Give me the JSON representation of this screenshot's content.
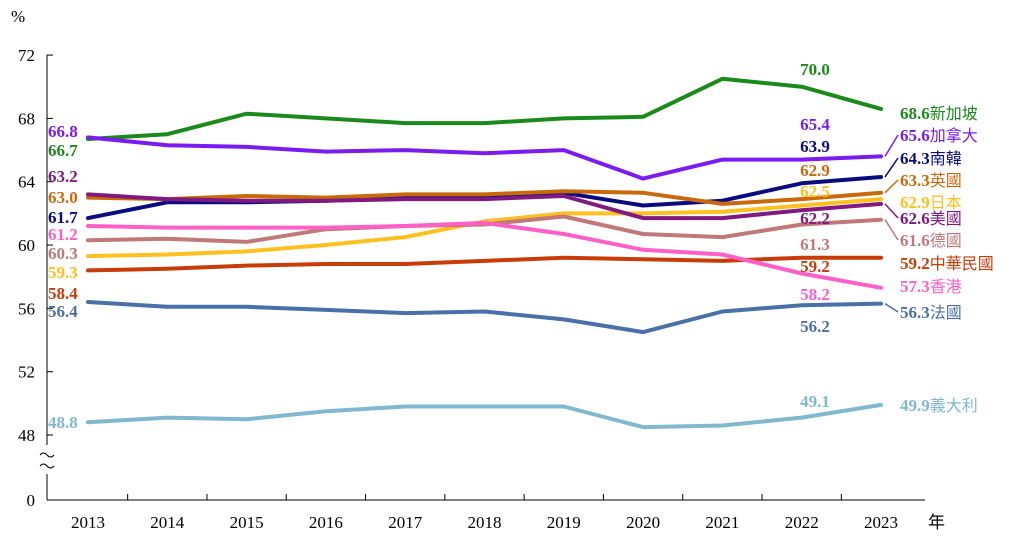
{
  "chart_data": {
    "type": "line",
    "y_unit": "%",
    "x_unit": "年",
    "ylim": [
      48,
      72
    ],
    "y_ticks": [
      "0",
      "48",
      "52",
      "56",
      "60",
      "64",
      "68",
      "72"
    ],
    "y_break": true,
    "grid": false,
    "x": [
      "2013",
      "2014",
      "2015",
      "2016",
      "2017",
      "2018",
      "2019",
      "2020",
      "2021",
      "2022",
      "2023"
    ],
    "series": [
      {
        "name": "新加坡",
        "color": "#1a8a1a",
        "values": [
          66.7,
          67.0,
          68.3,
          68.0,
          67.7,
          67.7,
          68.0,
          68.1,
          70.5,
          70.0,
          68.6
        ],
        "labels": [
          {
            "i": 0,
            "text": "66.7"
          },
          {
            "i": 9,
            "text": "70.0"
          },
          {
            "i": 10,
            "text": "68.6"
          }
        ]
      },
      {
        "name": "加拿大",
        "color": "#7a1cf0",
        "values": [
          66.8,
          66.3,
          66.2,
          65.9,
          66.0,
          65.8,
          66.0,
          64.2,
          65.4,
          65.4,
          65.6
        ],
        "labels": [
          {
            "i": 0,
            "text": "66.8"
          },
          {
            "i": 9,
            "text": "65.4"
          },
          {
            "i": 10,
            "text": "65.6"
          }
        ]
      },
      {
        "name": "南韓",
        "color": "#0b0b80",
        "values": [
          61.7,
          62.7,
          62.7,
          62.8,
          63.0,
          63.0,
          63.3,
          62.5,
          62.8,
          63.9,
          64.3
        ],
        "labels": [
          {
            "i": 0,
            "text": "61.7"
          },
          {
            "i": 9,
            "text": "63.9"
          },
          {
            "i": 10,
            "text": "64.3"
          }
        ]
      },
      {
        "name": "英國",
        "color": "#c86a0c",
        "values": [
          63.0,
          62.9,
          63.1,
          63.0,
          63.2,
          63.2,
          63.4,
          63.3,
          62.6,
          62.9,
          63.3
        ],
        "labels": [
          {
            "i": 0,
            "text": "63.0"
          },
          {
            "i": 9,
            "text": "62.9"
          },
          {
            "i": 10,
            "text": "63.3"
          }
        ]
      },
      {
        "name": "日本",
        "color": "#ffc020",
        "values": [
          59.3,
          59.4,
          59.6,
          60.0,
          60.5,
          61.5,
          62.0,
          62.0,
          62.1,
          62.5,
          62.9
        ],
        "labels": [
          {
            "i": 0,
            "text": "59.3"
          },
          {
            "i": 9,
            "text": "62.5"
          },
          {
            "i": 10,
            "text": "62.9"
          }
        ]
      },
      {
        "name": "美國",
        "color": "#801a80",
        "values": [
          63.2,
          62.9,
          62.8,
          62.8,
          62.9,
          62.9,
          63.1,
          61.7,
          61.7,
          62.2,
          62.6
        ],
        "labels": [
          {
            "i": 0,
            "text": "63.2"
          },
          {
            "i": 9,
            "text": "62.2"
          },
          {
            "i": 10,
            "text": "62.6"
          }
        ]
      },
      {
        "name": "德國",
        "color": "#c07878",
        "values": [
          60.3,
          60.4,
          60.2,
          61.0,
          61.2,
          61.3,
          61.8,
          60.7,
          60.5,
          61.3,
          61.6
        ],
        "labels": [
          {
            "i": 0,
            "text": "60.3"
          },
          {
            "i": 9,
            "text": "61.3"
          },
          {
            "i": 10,
            "text": "61.6"
          }
        ]
      },
      {
        "name": "中華民國",
        "color": "#c83c0a",
        "values": [
          58.4,
          58.5,
          58.7,
          58.8,
          58.8,
          59.0,
          59.2,
          59.1,
          59.0,
          59.2,
          59.2
        ],
        "labels": [
          {
            "i": 0,
            "text": "58.4"
          },
          {
            "i": 9,
            "text": "59.2"
          },
          {
            "i": 10,
            "text": "59.2"
          }
        ]
      },
      {
        "name": "香港",
        "color": "#ff60c8",
        "values": [
          61.2,
          61.1,
          61.1,
          61.1,
          61.2,
          61.4,
          60.7,
          59.7,
          59.4,
          58.2,
          57.3
        ],
        "labels": [
          {
            "i": 0,
            "text": "61.2"
          },
          {
            "i": 9,
            "text": "58.2"
          },
          {
            "i": 10,
            "text": "57.3"
          }
        ]
      },
      {
        "name": "法國",
        "color": "#4a70a8",
        "values": [
          56.4,
          56.1,
          56.1,
          55.9,
          55.7,
          55.8,
          55.3,
          54.5,
          55.8,
          56.2,
          56.3
        ],
        "labels": [
          {
            "i": 0,
            "text": "56.4"
          },
          {
            "i": 9,
            "text": "56.2"
          },
          {
            "i": 10,
            "text": "56.3"
          }
        ]
      },
      {
        "name": "義大利",
        "color": "#80b8d0",
        "values": [
          48.8,
          49.1,
          49.0,
          49.5,
          49.8,
          49.8,
          49.8,
          48.5,
          48.6,
          49.1,
          49.9
        ],
        "labels": [
          {
            "i": 0,
            "text": "48.8"
          },
          {
            "i": 9,
            "text": "49.1"
          },
          {
            "i": 10,
            "text": "49.9"
          }
        ]
      }
    ]
  }
}
